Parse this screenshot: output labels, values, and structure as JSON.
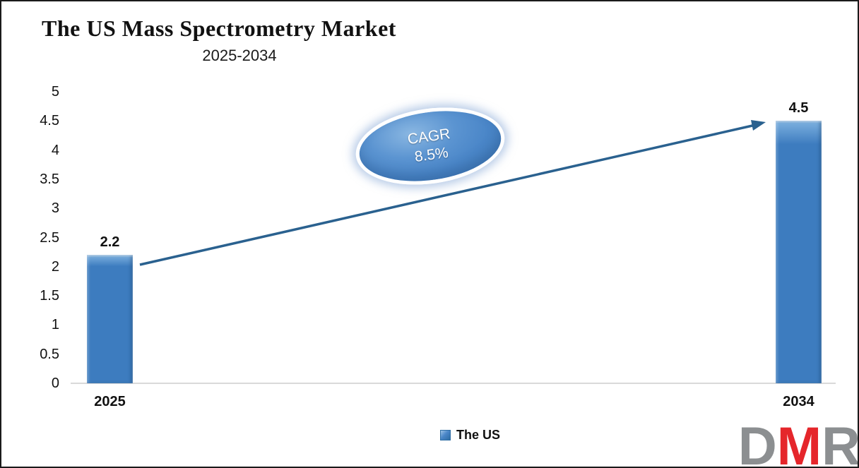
{
  "header": {
    "title": "The US Mass Spectrometry Market",
    "subtitle": "2025-2034"
  },
  "chart_data": {
    "type": "bar",
    "title": "The US Mass Spectrometry Market",
    "subtitle": "2025-2034",
    "categories": [
      "2025",
      "2034"
    ],
    "values": [
      2.2,
      4.5
    ],
    "value_labels": [
      "2.2",
      "4.5"
    ],
    "series": [
      {
        "name": "The US",
        "values": [
          2.2,
          4.5
        ]
      }
    ],
    "ylim": [
      0,
      5
    ],
    "ytick_step": 0.5,
    "yticks": [
      "5",
      "4.5",
      "4",
      "3.5",
      "3",
      "2.5",
      "2",
      "1.5",
      "1",
      "0.5",
      "0"
    ],
    "grid": false,
    "legend_position": "bottom",
    "trend_arrow": true,
    "annotation": {
      "line1": "CAGR",
      "line2": "8.5%"
    }
  },
  "annotation": {
    "line1": "CAGR",
    "line2": "8.5%"
  },
  "legend": {
    "label": "The US"
  },
  "logo": {
    "letters": [
      "D",
      "M",
      "R"
    ]
  },
  "colors": {
    "bar": "#3D7CBF",
    "bar_light": "#7FB2E0",
    "bar_dark": "#2E6DA4",
    "arrow": "#2A618F",
    "axis_line": "#D9D9D9",
    "badge_fill": "#4A86C8",
    "badge_ring": "#FFFFFF",
    "logo_gray": "#8C8F91",
    "logo_red": "#E5262B",
    "text": "#1A1A1A"
  }
}
